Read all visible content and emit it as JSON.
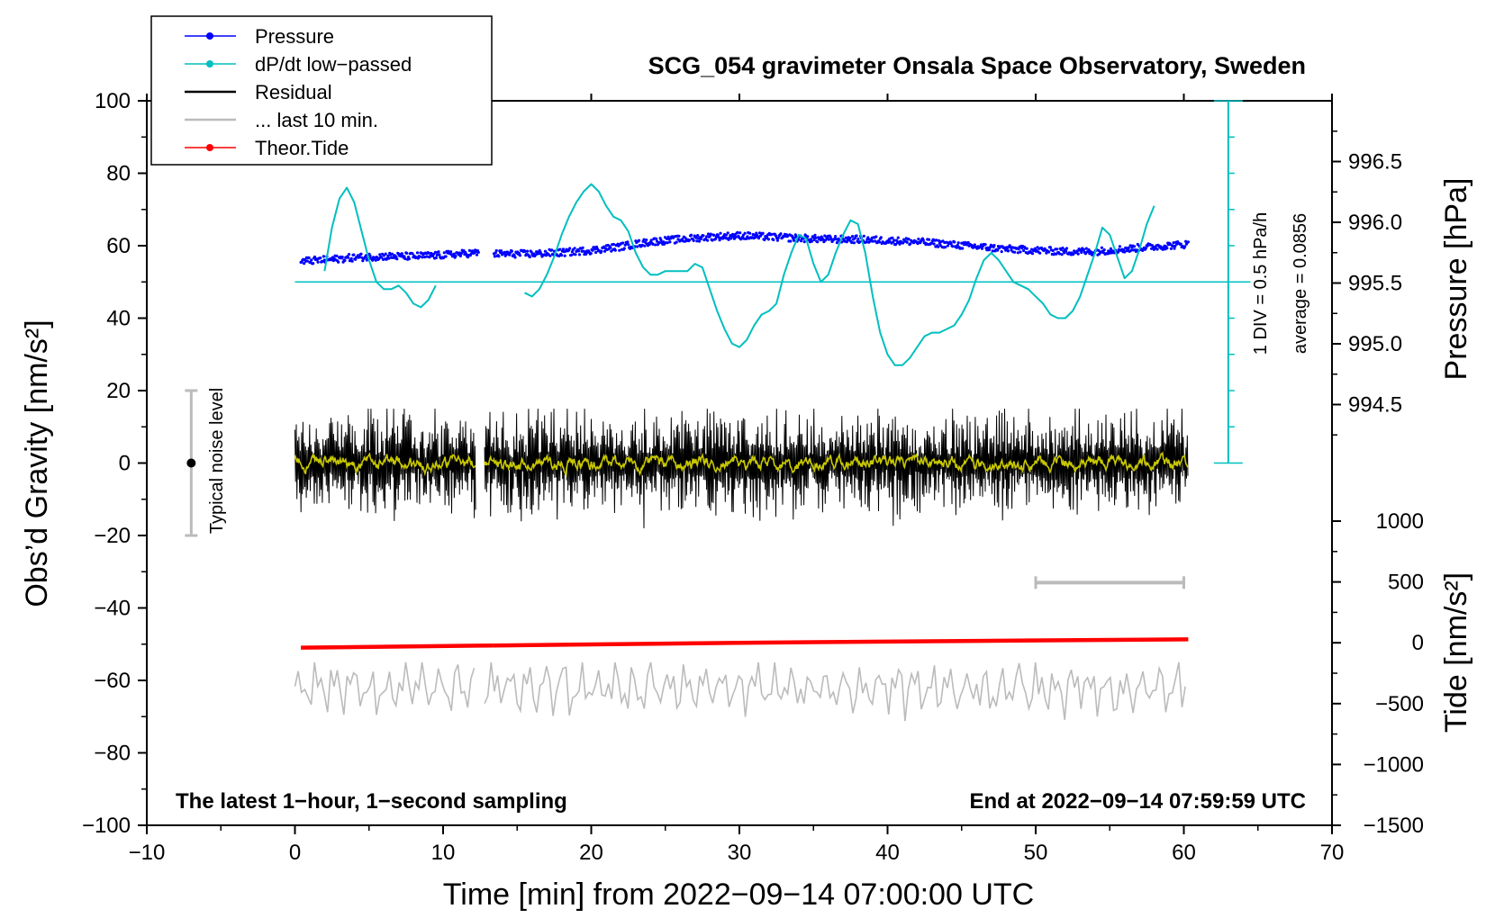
{
  "chart_data": {
    "type": "line",
    "title": "SCG_054 gravimeter Onsala Space Observatory, Sweden",
    "xlabel": "Time [min] from 2022−09−14 07:00:00 UTC",
    "ylabel_left": "Obs’d Gravity [nm/s²]",
    "ylabel_right_pressure": "Pressure [hPa]",
    "ylabel_right_tide": "Tide [nm/s²]",
    "xlim": [
      -10,
      70
    ],
    "ylim_left": [
      -100,
      100
    ],
    "x_ticks": [
      "−10",
      "0",
      "10",
      "20",
      "30",
      "40",
      "50",
      "60",
      "70"
    ],
    "y_ticks_left": [
      "100",
      "80",
      "60",
      "40",
      "20",
      "0",
      "−20",
      "−40",
      "−60",
      "−80",
      "−100"
    ],
    "pressure_axis": {
      "range": [
        994.0,
        997.0
      ],
      "ticks": [
        "996.5",
        "996.0",
        "995.5",
        "995.0",
        "994.5"
      ]
    },
    "tide_axis": {
      "range": [
        -1500,
        1000
      ],
      "ticks": [
        "1000",
        "500",
        "0",
        "−500",
        "−1000",
        "−1500"
      ]
    },
    "legend": [
      {
        "label": "Pressure",
        "color": "#0000ff",
        "marker": "dot"
      },
      {
        "label": "dP/dt low−passed",
        "color": "#00bfbf",
        "marker": "dot"
      },
      {
        "label": "Residual",
        "color": "#000000",
        "marker": "line"
      },
      {
        "label": "... last 10 min.",
        "color": "#bbbbbb",
        "marker": "line"
      },
      {
        "label": "Theor.Tide",
        "color": "#ff0000",
        "marker": "dot"
      }
    ],
    "dpdt_scale_label": "1 DIV = 0.5 hPa/h",
    "dpdt_average_label": "average = 0.0856",
    "noise_label": "Typical noise level",
    "noise_level": {
      "x": -7,
      "center": 0,
      "range": [
        -20,
        20
      ]
    },
    "footer_left": "The latest 1−hour, 1−second sampling",
    "footer_right": "End at 2022−09−14 07:59:59 UTC",
    "series": [
      {
        "name": "Pressure",
        "axis": "pressure_hPa",
        "color": "#0000ff",
        "x": [
          0.4,
          2,
          4,
          6,
          8,
          10,
          12.4,
          13.4,
          16,
          18,
          20,
          22,
          24,
          26,
          28,
          30,
          32,
          34,
          36,
          38,
          40,
          42,
          44,
          46,
          48,
          50,
          52,
          54,
          56,
          58,
          60.3
        ],
        "values": [
          995.68,
          995.69,
          995.71,
          995.72,
          995.72,
          995.73,
          995.75,
          995.74,
          995.74,
          995.75,
          995.77,
          995.8,
          995.84,
          995.86,
          995.88,
          995.89,
          995.88,
          995.87,
          995.86,
          995.86,
          995.85,
          995.84,
          995.82,
          995.8,
          995.78,
          995.77,
          995.76,
          995.76,
          995.78,
          995.8,
          995.82
        ]
      },
      {
        "name": "dP/dt low−passed",
        "axis": "left_nm_s2",
        "color": "#00bfbf",
        "segments": [
          {
            "x": [
              2.0,
              2.5,
              3.0,
              3.5,
              4.0,
              4.5,
              5.0,
              5.5,
              6.0,
              6.5,
              7.0,
              7.5,
              8.0,
              8.5,
              9.0,
              9.5
            ],
            "values": [
              53,
              65,
              73,
              76,
              72,
              64,
              56,
              50,
              48,
              48,
              49,
              47,
              44,
              43,
              45,
              49
            ]
          },
          {
            "x": [
              15.5,
              16.0,
              16.5,
              17.0,
              17.5,
              18.0,
              18.5,
              19.0,
              19.5,
              20.0,
              20.5,
              21.0,
              21.5,
              22.0,
              22.5,
              23.0,
              23.5,
              24.0,
              24.5,
              25.0,
              25.5,
              26.0,
              26.5,
              27.0,
              27.5,
              28.0,
              28.5,
              29.0,
              29.5,
              30.0,
              30.5,
              31.0,
              31.5,
              32.0,
              32.5,
              33.0,
              33.5,
              34.0,
              34.5,
              35.0,
              35.5,
              36.0,
              36.5,
              37.0,
              37.5,
              38.0,
              38.5,
              39.0,
              39.5,
              40.0,
              40.5,
              41.0,
              41.5,
              42.0,
              42.5,
              43.0,
              43.5,
              44.0,
              44.5,
              45.0,
              45.5,
              46.0,
              46.5,
              47.0,
              47.5,
              48.0,
              48.5,
              49.0,
              49.5,
              50.0,
              50.5,
              51.0,
              51.5,
              52.0,
              52.5,
              53.0,
              53.5,
              54.0,
              54.5,
              55.0,
              55.5,
              56.0,
              56.5,
              57.0,
              57.5,
              58.0
            ],
            "values": [
              47,
              46,
              48,
              52,
              57,
              63,
              68,
              72,
              75,
              77,
              75,
              71,
              68,
              67,
              64,
              58,
              54,
              52,
              52,
              53,
              53,
              53,
              53,
              55,
              54,
              48,
              42,
              37,
              33,
              32,
              34,
              38,
              41,
              42,
              44,
              52,
              58,
              63,
              62,
              55,
              50,
              52,
              58,
              63,
              67,
              66,
              58,
              46,
              36,
              30,
              27,
              27,
              29,
              32,
              35,
              36,
              36,
              37,
              38,
              41,
              45,
              51,
              56,
              58,
              56,
              53,
              50,
              49,
              48,
              46,
              44,
              41,
              40,
              40,
              42,
              46,
              52,
              58,
              65,
              63,
              57,
              51,
              53,
              59,
              66,
              71
            ]
          }
        ]
      },
      {
        "name": "Residual",
        "axis": "left_nm_s2",
        "color": "#000000",
        "noise_envelope": [
          -15,
          15
        ],
        "center": 0,
        "segments": [
          [
            0,
            12.2
          ],
          [
            12.8,
            60.3
          ]
        ]
      },
      {
        "name": "... last 10 min.",
        "axis": "left_nm_s2",
        "color": "#bbbbbb",
        "x_range": [
          50,
          60
        ],
        "level": -33
      },
      {
        "name": "Theor.Tide",
        "axis": "tide_nm_s2",
        "color": "#ff0000",
        "x": [
          0.4,
          12.4,
          13.4,
          30,
          45,
          60.3
        ],
        "values": [
          -40,
          -24,
          -22,
          0,
          15,
          28
        ]
      },
      {
        "name": "Residual (last 10 min. overlay)",
        "axis": "left_nm_s2",
        "color": "#bbbbbb",
        "center": -62,
        "noise_envelope": [
          -73,
          -55
        ],
        "segments": [
          [
            0,
            12.2
          ],
          [
            12.8,
            60.3
          ]
        ]
      }
    ]
  }
}
